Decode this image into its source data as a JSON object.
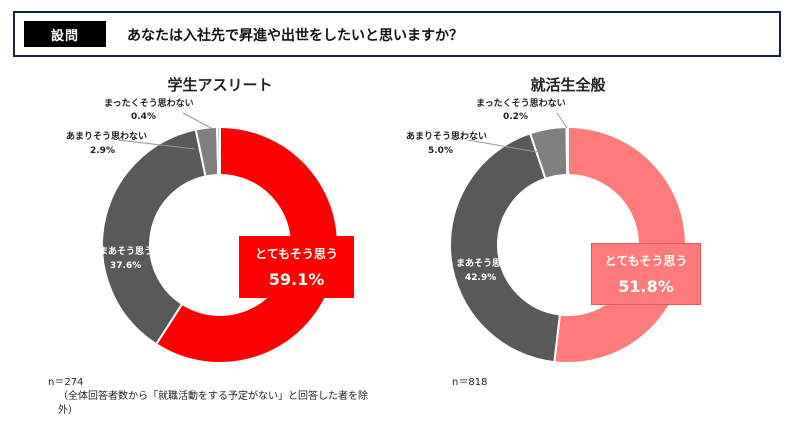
{
  "question": {
    "label": "設問",
    "text": "あなたは入社先で昇進や出世をしたいと思いますか？"
  },
  "colors": {
    "student_strong": "#ff0000",
    "general_strong": "#ff7b7b",
    "somewhat": "#595959",
    "not_much": "#808080",
    "not_at_all": "#bfbfbf",
    "header_border": "#14253f"
  },
  "chart_data": [
    {
      "type": "pie",
      "title": "学生アスリート",
      "categories": [
        "とてもそう思う",
        "まあそう思う",
        "あまりそう思わない",
        "まったくそう思わない"
      ],
      "values": [
        59.1,
        37.6,
        2.9,
        0.4
      ],
      "labels": [
        "59.1%",
        "37.6%",
        "2.9%",
        "0.4%"
      ],
      "note": "n＝274",
      "note2": "（全体回答者数から「就職活動をする予定がない」と回答した者を除外）"
    },
    {
      "type": "pie",
      "title": "就活生全般",
      "categories": [
        "とてもそう思う",
        "まあそう思う",
        "あまりそう思わない",
        "まったくそう思わない"
      ],
      "values": [
        51.8,
        42.9,
        5.0,
        0.2
      ],
      "labels": [
        "51.8%",
        "42.9%",
        "5.0%",
        "0.2%"
      ],
      "note": "n＝818"
    }
  ]
}
